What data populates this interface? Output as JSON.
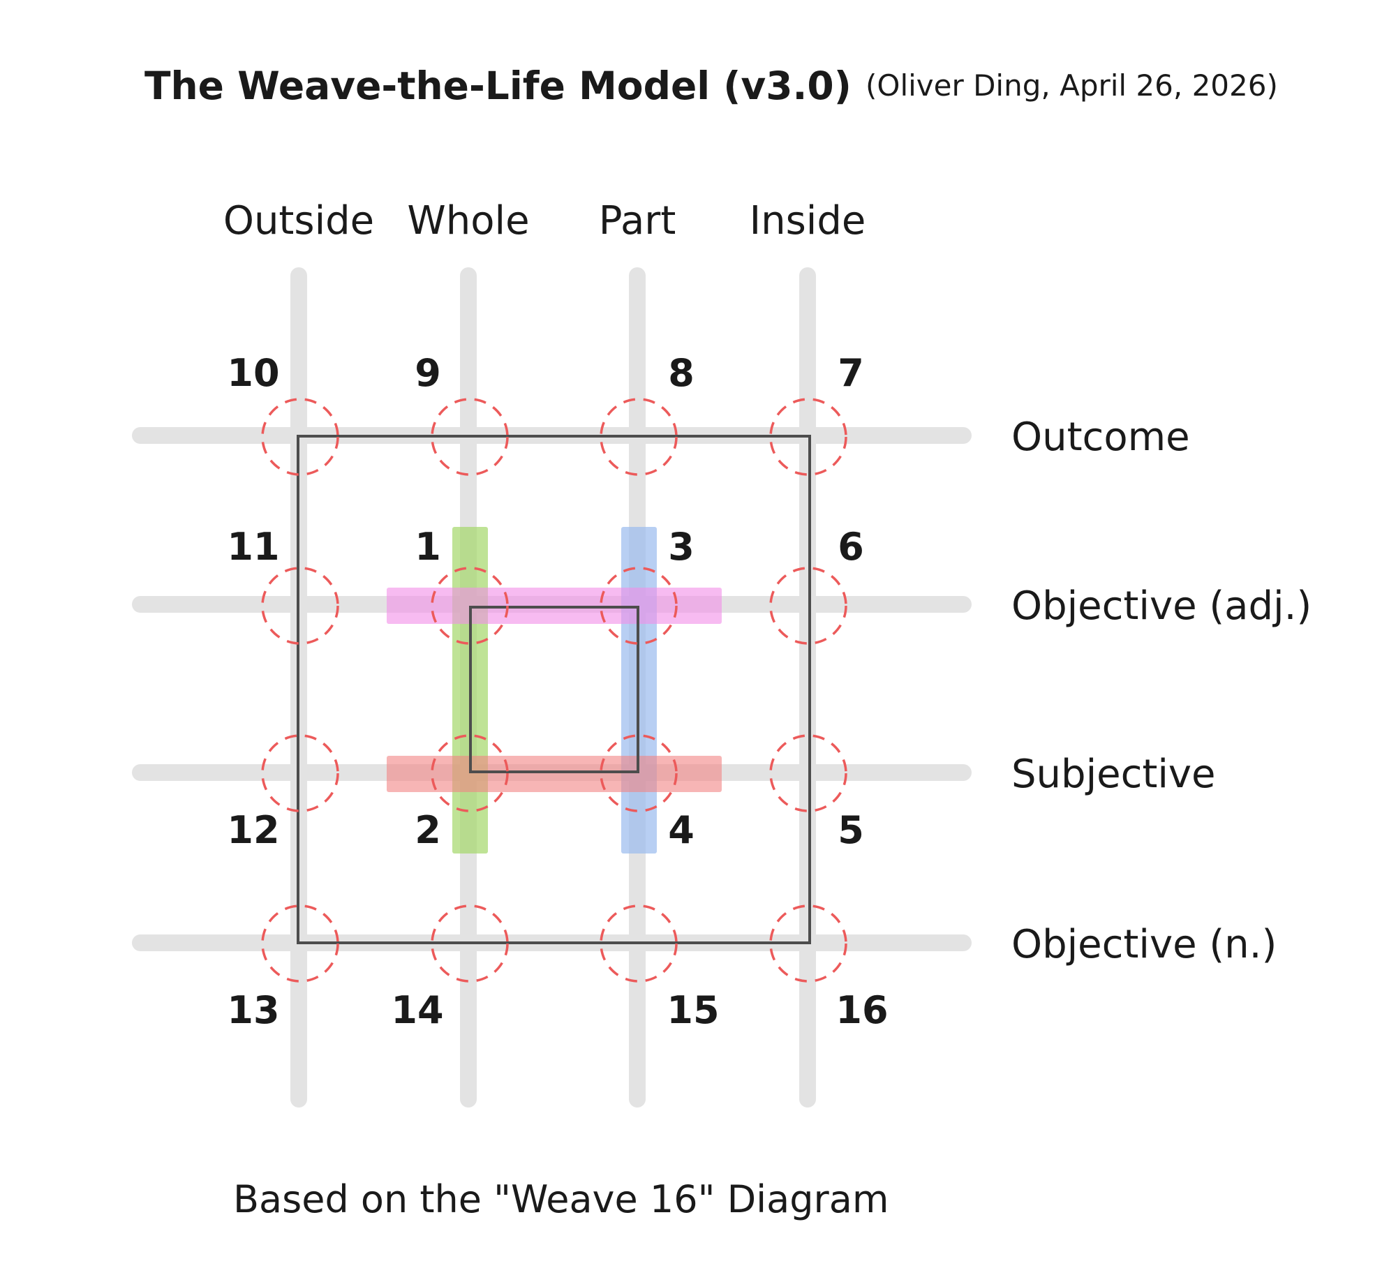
{
  "title": "The Weave-the-Life Model (v3.0)",
  "subtitle": "(Oliver Ding, April 26, 2026)",
  "columns": [
    "Outside",
    "Whole",
    "Part",
    "Inside"
  ],
  "rows": [
    "Outcome",
    "Objective (adj.)",
    "Subjective",
    "Objective (n.)"
  ],
  "numbers": {
    "n1": "1",
    "n2": "2",
    "n3": "3",
    "n4": "4",
    "n5": "5",
    "n6": "6",
    "n7": "7",
    "n8": "8",
    "n9": "9",
    "n10": "10",
    "n11": "11",
    "n12": "12",
    "n13": "13",
    "n14": "14",
    "n15": "15",
    "n16": "16"
  },
  "highlights": {
    "whole_column": "#a6d86e",
    "part_column": "#9dbdee",
    "objective_adj_row": "#f28ee8",
    "subjective_row": "#f18484"
  },
  "footer": "Based on the \"Weave 16\" Diagram"
}
